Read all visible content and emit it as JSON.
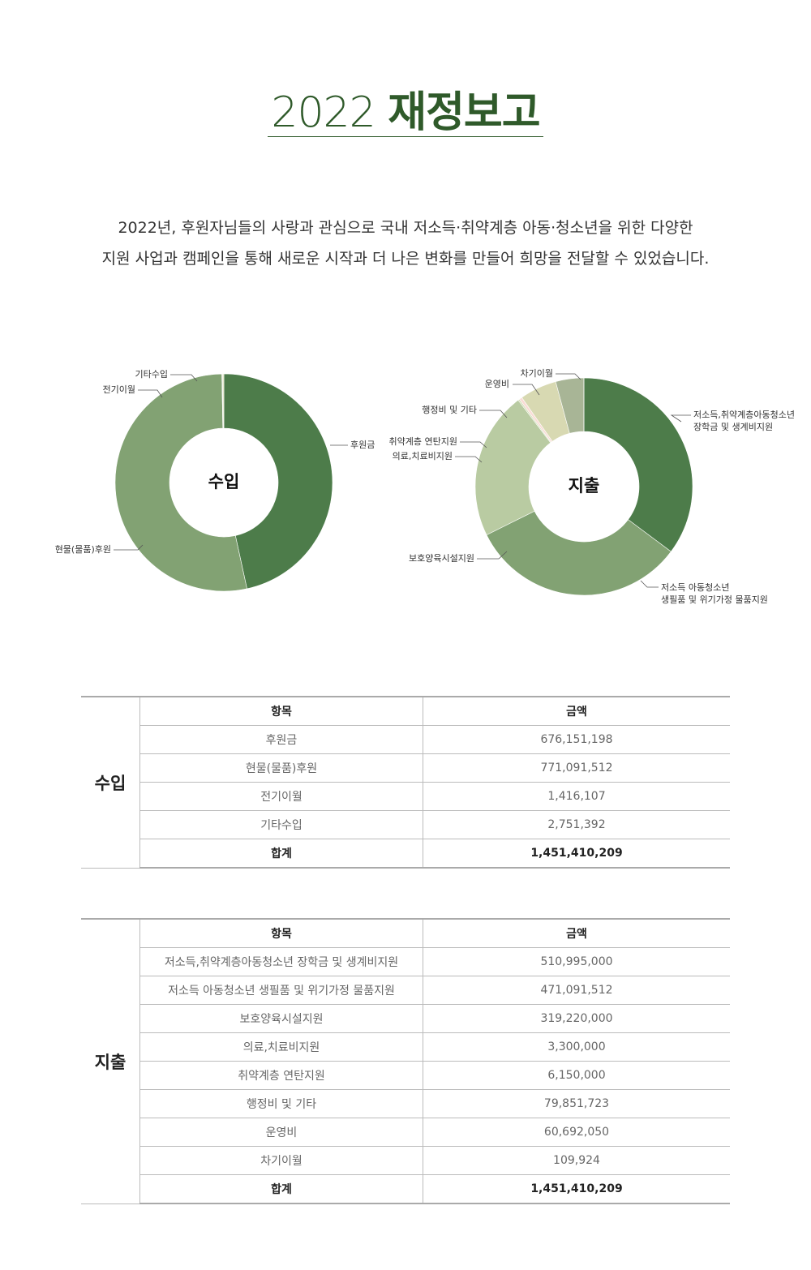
{
  "header": {
    "title_year": "2022",
    "title_main": "재정보고"
  },
  "intro": {
    "lines": [
      "2022년, 후원자님들의 사랑과 관심으로 국내 저소득·취약계층 아동·청소년을 위한 다양한",
      "지원 사업과 캠페인을 통해 새로운 시작과 더 나은 변화를 만들어 희망을 전달할 수 있었습니다."
    ]
  },
  "chart_data": [
    {
      "type": "donut",
      "center_label": "수입",
      "categories": [
        "후원금",
        "현물(물품)후원",
        "전기이월",
        "기타수입"
      ],
      "values": [
        676151198,
        771091512,
        1416107,
        2751392
      ],
      "colors": [
        "#4d7c4a",
        "#82a273",
        "#b8c9a0",
        "#dfe0bc"
      ]
    },
    {
      "type": "donut",
      "center_label": "지출",
      "categories": [
        "저소득,취약계층아동청소년\n장학금 및 생계비지원",
        "저소득 아동청소년\n생필품 및 위기가정 물품지원",
        "보호양육시설지원",
        "의료,치료비지원",
        "취약계층 연탄지원",
        "행정비 및 기타",
        "운영비",
        "차기이월"
      ],
      "values": [
        510995000,
        471091512,
        319220000,
        3300000,
        6150000,
        79851723,
        60692050,
        109924
      ],
      "colors": [
        "#4d7c4a",
        "#82a273",
        "#b9cba2",
        "#d2dcb4",
        "#f9dcd5",
        "#d8d9b2",
        "#a8b596",
        "#6d8b5c"
      ]
    }
  ],
  "tables": [
    {
      "section": "수입",
      "header": [
        "항목",
        "금액"
      ],
      "rows": [
        [
          "후원금",
          "676,151,198"
        ],
        [
          "현물(물품)후원",
          "771,091,512"
        ],
        [
          "전기이월",
          "1,416,107"
        ],
        [
          "기타수입",
          "2,751,392"
        ]
      ],
      "total": [
        "합계",
        "1,451,410,209"
      ]
    },
    {
      "section": "지출",
      "header": [
        "항목",
        "금액"
      ],
      "rows": [
        [
          "저소득,취약계층아동청소년 장학금 및 생계비지원",
          "510,995,000"
        ],
        [
          "저소득 아동청소년 생필품 및 위기가정 물품지원",
          "471,091,512"
        ],
        [
          "보호양육시설지원",
          "319,220,000"
        ],
        [
          "의료,치료비지원",
          "3,300,000"
        ],
        [
          "취약계층 연탄지원",
          "6,150,000"
        ],
        [
          "행정비 및 기타",
          "79,851,723"
        ],
        [
          "운영비",
          "60,692,050"
        ],
        [
          "차기이월",
          "109,924"
        ]
      ],
      "total": [
        "합계",
        "1,451,410,209"
      ]
    }
  ]
}
